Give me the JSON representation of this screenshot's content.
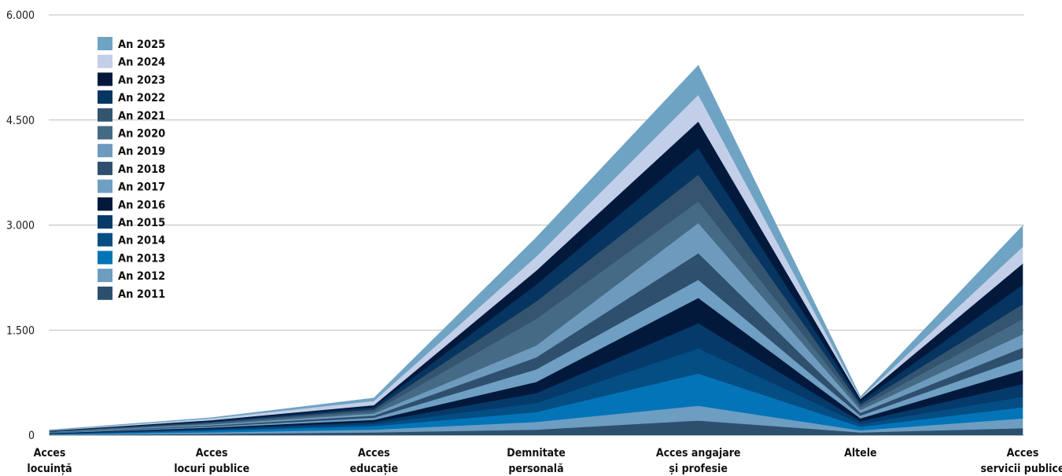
{
  "chart_data": {
    "type": "area",
    "stacked": true,
    "categories": [
      [
        "Acces",
        "locuință"
      ],
      [
        "Acces",
        "locuri publice"
      ],
      [
        "Acces",
        "educație"
      ],
      [
        "Demnitate",
        "personală"
      ],
      [
        "Acces angajare",
        "și profesie"
      ],
      [
        "Altele"
      ],
      [
        "Acces",
        "servicii publice"
      ]
    ],
    "y_ticks": [
      "0",
      "1.500",
      "3.000",
      "4.500",
      "6.000"
    ],
    "ylim": [
      0,
      6000
    ],
    "grid": true,
    "legend_position": "top-left",
    "series": [
      {
        "name": "An 2011",
        "color": "#2d4f6e",
        "values": [
          5,
          20,
          40,
          80,
          210,
          40,
          100
        ]
      },
      {
        "name": "An 2012",
        "color": "#6d9dc0",
        "values": [
          5,
          20,
          40,
          110,
          210,
          30,
          140
        ]
      },
      {
        "name": "An 2013",
        "color": "#0474b8",
        "values": [
          5,
          25,
          50,
          140,
          460,
          50,
          160
        ]
      },
      {
        "name": "An 2014",
        "color": "#044e84",
        "values": [
          5,
          15,
          30,
          130,
          360,
          40,
          150
        ]
      },
      {
        "name": "An 2015",
        "color": "#053a6b",
        "values": [
          5,
          15,
          30,
          140,
          360,
          40,
          180
        ]
      },
      {
        "name": "An 2016",
        "color": "#03193c",
        "values": [
          5,
          15,
          30,
          160,
          360,
          40,
          200
        ]
      },
      {
        "name": "An 2017",
        "color": "#6f9fc2",
        "values": [
          5,
          15,
          30,
          180,
          260,
          40,
          170
        ]
      },
      {
        "name": "An 2018",
        "color": "#2e4f6d",
        "values": [
          5,
          15,
          30,
          170,
          380,
          40,
          150
        ]
      },
      {
        "name": "An 2019",
        "color": "#6e9bbd",
        "values": [
          5,
          15,
          30,
          170,
          430,
          40,
          190
        ]
      },
      {
        "name": "An 2020",
        "color": "#456a86",
        "values": [
          5,
          15,
          30,
          380,
          310,
          40,
          220
        ]
      },
      {
        "name": "An 2021",
        "color": "#35546f",
        "values": [
          5,
          15,
          30,
          250,
          380,
          40,
          210
        ]
      },
      {
        "name": "An 2022",
        "color": "#053560",
        "values": [
          5,
          15,
          30,
          240,
          380,
          40,
          280
        ]
      },
      {
        "name": "An 2023",
        "color": "#03193c",
        "values": [
          5,
          15,
          30,
          200,
          380,
          40,
          300
        ]
      },
      {
        "name": "An 2024",
        "color": "#c3cfe8",
        "values": [
          5,
          25,
          60,
          200,
          380,
          10,
          240
        ]
      },
      {
        "name": "An 2025",
        "color": "#6fa3c3",
        "values": [
          5,
          10,
          40,
          270,
          420,
          20,
          300
        ]
      }
    ]
  }
}
